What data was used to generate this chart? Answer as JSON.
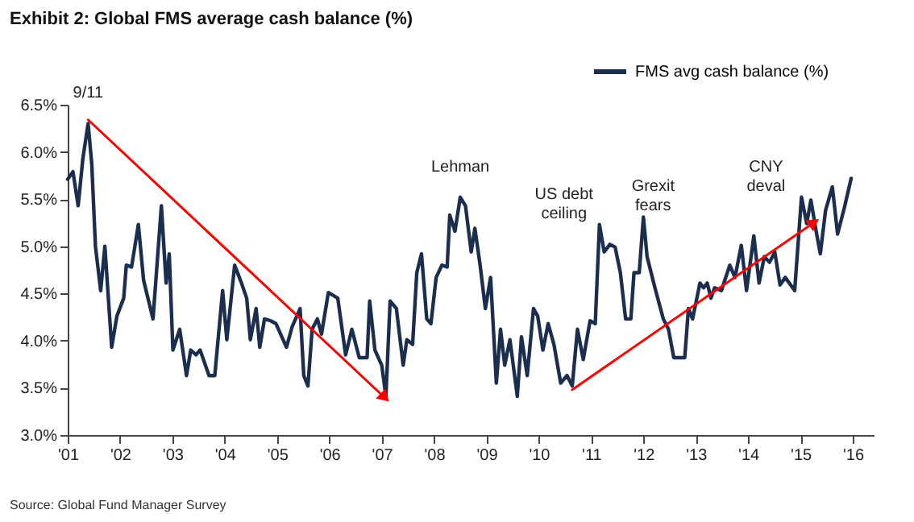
{
  "chart_data": {
    "type": "line",
    "title": "Exhibit 2: Global FMS average cash balance (%)",
    "xlim": [
      2001,
      2016.4
    ],
    "ylim": [
      3.0,
      6.5
    ],
    "xticks": [
      {
        "value": 2001,
        "label": "'01"
      },
      {
        "value": 2002,
        "label": "'02"
      },
      {
        "value": 2003,
        "label": "'03"
      },
      {
        "value": 2004,
        "label": "'04"
      },
      {
        "value": 2005,
        "label": "'05"
      },
      {
        "value": 2006,
        "label": "'06"
      },
      {
        "value": 2007,
        "label": "'07"
      },
      {
        "value": 2008,
        "label": "'08"
      },
      {
        "value": 2009,
        "label": "'09"
      },
      {
        "value": 2010,
        "label": "'10"
      },
      {
        "value": 2011,
        "label": "'11"
      },
      {
        "value": 2012,
        "label": "'12"
      },
      {
        "value": 2013,
        "label": "'13"
      },
      {
        "value": 2014,
        "label": "'14"
      },
      {
        "value": 2015,
        "label": "'15"
      },
      {
        "value": 2016,
        "label": "'16"
      }
    ],
    "yticks": [
      {
        "value": 3.0,
        "label": "3.0%"
      },
      {
        "value": 3.5,
        "label": "3.5%"
      },
      {
        "value": 4.0,
        "label": "4.0%"
      },
      {
        "value": 4.5,
        "label": "4.5%"
      },
      {
        "value": 5.0,
        "label": "5.0%"
      },
      {
        "value": 5.5,
        "label": "5.5%"
      },
      {
        "value": 6.0,
        "label": "6.0%"
      },
      {
        "value": 6.5,
        "label": "6.5%"
      }
    ],
    "grid": false,
    "legend": "top right",
    "series": [
      {
        "name": "FMS avg cash balance (%)",
        "color": "#1c2e4f",
        "x": [
          2001.0,
          2001.1,
          2001.2,
          2001.29,
          2001.39,
          2001.46,
          2001.53,
          2001.63,
          2001.71,
          2001.84,
          2001.94,
          2002.07,
          2002.12,
          2002.22,
          2002.35,
          2002.45,
          2002.63,
          2002.79,
          2002.88,
          2002.94,
          2003.01,
          2003.14,
          2003.27,
          2003.35,
          2003.45,
          2003.53,
          2003.7,
          2003.81,
          2003.96,
          2004.04,
          2004.19,
          2004.32,
          2004.42,
          2004.49,
          2004.6,
          2004.67,
          2004.76,
          2004.88,
          2004.98,
          2005.18,
          2005.29,
          2005.44,
          2005.51,
          2005.59,
          2005.67,
          2005.77,
          2005.85,
          2005.98,
          2006.16,
          2006.31,
          2006.43,
          2006.57,
          2006.72,
          2006.77,
          2006.87,
          2007.0,
          2007.08,
          2007.16,
          2007.28,
          2007.41,
          2007.48,
          2007.59,
          2007.67,
          2007.76,
          2007.86,
          2007.94,
          2008.04,
          2008.15,
          2008.25,
          2008.3,
          2008.4,
          2008.5,
          2008.6,
          2008.71,
          2008.78,
          2008.88,
          2008.98,
          2009.08,
          2009.19,
          2009.27,
          2009.35,
          2009.45,
          2009.59,
          2009.67,
          2009.78,
          2009.9,
          2009.98,
          2010.08,
          2010.18,
          2010.29,
          2010.42,
          2010.54,
          2010.64,
          2010.74,
          2010.85,
          2010.98,
          2011.08,
          2011.16,
          2011.25,
          2011.36,
          2011.46,
          2011.56,
          2011.66,
          2011.76,
          2011.82,
          2011.92,
          2012.0,
          2012.07,
          2012.22,
          2012.38,
          2012.48,
          2012.58,
          2012.79,
          2012.86,
          2012.94,
          2013.08,
          2013.15,
          2013.22,
          2013.29,
          2013.36,
          2013.49,
          2013.65,
          2013.75,
          2013.87,
          2013.97,
          2014.11,
          2014.21,
          2014.31,
          2014.41,
          2014.51,
          2014.61,
          2014.71,
          2014.89,
          2015.02,
          2015.12,
          2015.2,
          2015.3,
          2015.38,
          2015.48,
          2015.61,
          2015.71,
          2015.84,
          2015.97
        ],
        "values": [
          5.71,
          5.79,
          5.43,
          5.93,
          6.3,
          5.87,
          5.0,
          4.53,
          5.0,
          3.93,
          4.26,
          4.45,
          4.8,
          4.78,
          5.23,
          4.64,
          4.23,
          5.43,
          4.61,
          4.92,
          3.9,
          4.12,
          3.63,
          3.9,
          3.85,
          3.9,
          3.63,
          3.63,
          4.53,
          4.01,
          4.8,
          4.61,
          4.45,
          4.01,
          4.34,
          3.93,
          4.23,
          4.21,
          4.18,
          3.93,
          4.15,
          4.34,
          3.63,
          3.52,
          4.12,
          4.23,
          4.07,
          4.51,
          4.45,
          3.85,
          4.12,
          3.82,
          3.82,
          4.42,
          3.9,
          3.74,
          3.41,
          4.42,
          4.34,
          3.74,
          4.01,
          3.96,
          4.72,
          4.92,
          4.23,
          4.18,
          4.67,
          4.8,
          4.78,
          5.33,
          5.16,
          5.52,
          5.43,
          4.94,
          5.19,
          4.8,
          4.34,
          4.67,
          3.55,
          4.12,
          3.74,
          4.01,
          3.41,
          4.04,
          3.63,
          4.34,
          4.26,
          3.9,
          4.18,
          3.96,
          3.55,
          3.63,
          3.52,
          4.12,
          3.8,
          4.21,
          4.18,
          5.23,
          4.94,
          5.02,
          4.99,
          4.72,
          4.23,
          4.23,
          4.72,
          4.72,
          5.31,
          4.89,
          4.56,
          4.23,
          4.12,
          3.82,
          3.82,
          4.34,
          4.23,
          4.61,
          4.56,
          4.61,
          4.45,
          4.56,
          4.53,
          4.8,
          4.67,
          5.01,
          4.53,
          5.11,
          4.61,
          4.89,
          4.83,
          4.94,
          4.59,
          4.67,
          4.53,
          5.52,
          5.24,
          5.49,
          5.16,
          4.92,
          5.38,
          5.63,
          5.13,
          5.41,
          5.72
        ]
      },
      {
        "type": "line",
        "color": "#ff0000",
        "x": [
          2001.39,
          2007.03
        ],
        "values": [
          6.34,
          3.41
        ]
      },
      {
        "type": "line",
        "color": "#ff0000",
        "x": [
          2010.64,
          2015.23
        ],
        "values": [
          3.48,
          5.24
        ]
      }
    ],
    "annotations": [
      {
        "text": "9/11",
        "x": 2001.39,
        "y": 6.3
      },
      {
        "text": "Lehman",
        "x": 2008.5,
        "y": 5.52
      },
      {
        "text": "US debt\nceiling",
        "x": 2011.16,
        "y": 5.23
      },
      {
        "text": "Grexit\nfears",
        "x": 2012.0,
        "y": 5.31
      },
      {
        "text": "CNY\ndeval",
        "x": 2015.02,
        "y": 5.52
      },
      "Source: Global Fund Manager Survey"
    ]
  }
}
